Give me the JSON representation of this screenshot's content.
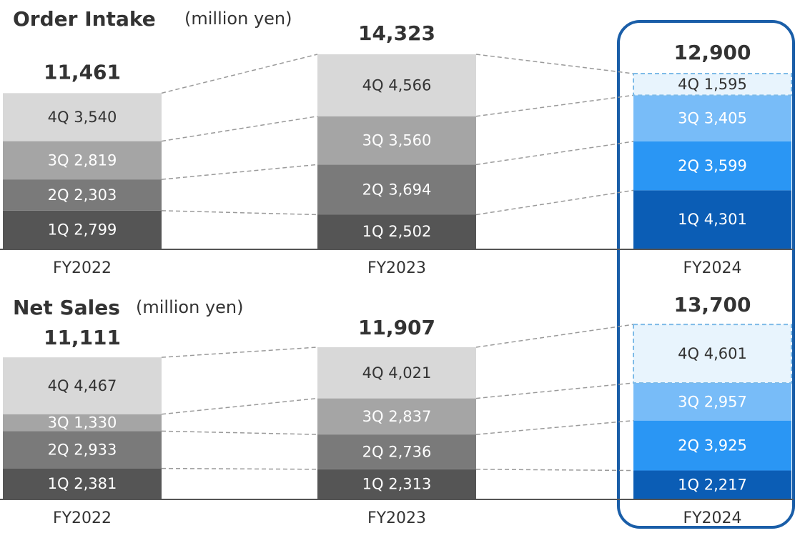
{
  "colors": {
    "frame": "#1a5ea8",
    "connector": "#9a9a9a",
    "axis": "#555555",
    "gray_1q": "#555555",
    "gray_2q": "#7a7a7a",
    "gray_3q": "#a5a5a5",
    "gray_4q": "#d8d8d8",
    "blue_1q": "#0b5db5",
    "blue_2q": "#2a96f4",
    "blue_3q": "#78bcf8",
    "blue_4q_forecast": "#e8f4fd",
    "forecast_border": "#7ebbe8"
  },
  "chart_data": [
    {
      "type": "bar",
      "stacked": true,
      "title": "Order Intake",
      "unit": "(million yen)",
      "categories": [
        "FY2022",
        "FY2023",
        "FY2024"
      ],
      "totals": [
        "11,461",
        "14,323",
        "12,900"
      ],
      "series": [
        {
          "name": "1Q",
          "values": [
            2799,
            2502,
            4301
          ],
          "labels": [
            "1Q 2,799",
            "1Q 2,502",
            "1Q 4,301"
          ]
        },
        {
          "name": "2Q",
          "values": [
            2303,
            3694,
            3599
          ],
          "labels": [
            "2Q 2,303",
            "2Q 3,694",
            "2Q 3,599"
          ]
        },
        {
          "name": "3Q",
          "values": [
            2819,
            3560,
            3405
          ],
          "labels": [
            "3Q 2,819",
            "3Q 3,560",
            "3Q 3,405"
          ]
        },
        {
          "name": "4Q",
          "values": [
            3540,
            4566,
            1595
          ],
          "labels": [
            "4Q 3,540",
            "4Q 4,566",
            "4Q 1,595"
          ]
        }
      ],
      "forecast": "FY2024 4Q (dashed outline)"
    },
    {
      "type": "bar",
      "stacked": true,
      "title": "Net Sales",
      "unit": "(million yen)",
      "categories": [
        "FY2022",
        "FY2023",
        "FY2024"
      ],
      "totals": [
        "11,111",
        "11,907",
        "13,700"
      ],
      "series": [
        {
          "name": "1Q",
          "values": [
            2381,
            2313,
            2217
          ],
          "labels": [
            "1Q 2,381",
            "1Q 2,313",
            "1Q 2,217"
          ]
        },
        {
          "name": "2Q",
          "values": [
            2933,
            2736,
            3925
          ],
          "labels": [
            "2Q 2,933",
            "2Q 2,736",
            "2Q 3,925"
          ]
        },
        {
          "name": "3Q",
          "values": [
            1330,
            2837,
            2957
          ],
          "labels": [
            "3Q 1,330",
            "3Q 2,837",
            "3Q 2,957"
          ]
        },
        {
          "name": "4Q",
          "values": [
            4467,
            4021,
            4601
          ],
          "labels": [
            "4Q 4,467",
            "4Q 4,021",
            "4Q 4,601"
          ]
        }
      ],
      "forecast": "FY2024 4Q (dashed outline)"
    }
  ]
}
